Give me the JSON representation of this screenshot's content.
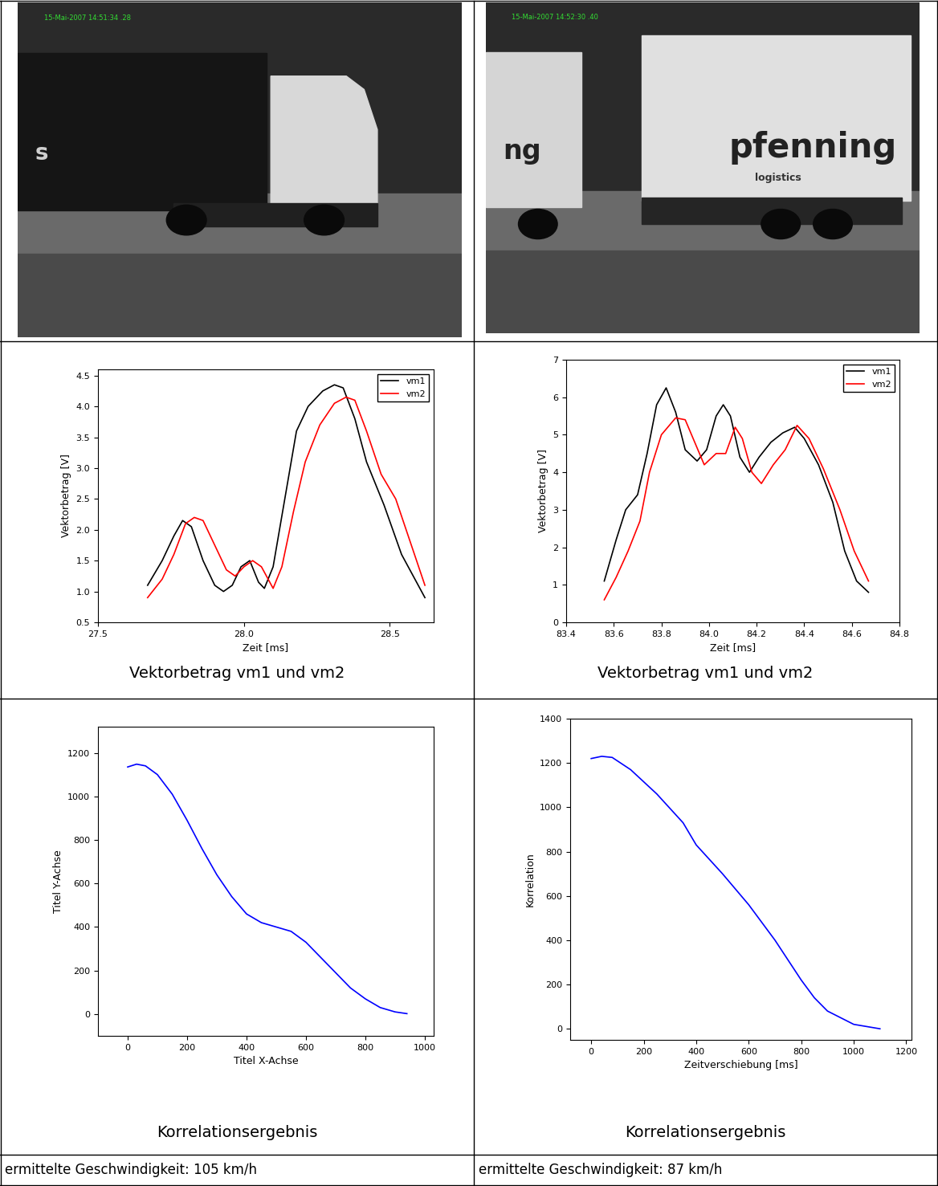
{
  "chart_data": [
    {
      "type": "line",
      "caption": "Vektorbetrag vm1 und vm2",
      "x_label": "Zeit [ms]",
      "y_label": "Vektorbetrag [V]",
      "xlim": [
        27.5,
        28.65
      ],
      "xticks": [
        27.5,
        {
          "value": 28,
          "label": "28.0"
        },
        28.5
      ],
      "ylim": [
        0.5,
        4.6
      ],
      "yticks": [
        0.5,
        {
          "value": 1,
          "label": "1.0"
        },
        1.5,
        {
          "value": 2,
          "label": "2.0"
        },
        2.5,
        {
          "value": 3,
          "label": "3.0"
        },
        3.5,
        {
          "value": 4,
          "label": "4.0"
        },
        4.5
      ],
      "legend": "upper right",
      "series": [
        {
          "name": "vm1",
          "color": "#000000",
          "x": [
            27.67,
            27.72,
            27.76,
            27.79,
            27.82,
            27.86,
            27.9,
            27.93,
            27.96,
            27.99,
            28.02,
            28.05,
            28.07,
            28.1,
            28.14,
            28.18,
            28.22,
            28.27,
            28.31,
            28.34,
            28.38,
            28.42,
            28.48,
            28.54,
            28.62
          ],
          "values": [
            1.1,
            1.5,
            1.9,
            2.15,
            2.05,
            1.5,
            1.1,
            1.0,
            1.1,
            1.4,
            1.5,
            1.15,
            1.05,
            1.4,
            2.5,
            3.6,
            4.0,
            4.25,
            4.35,
            4.3,
            3.8,
            3.1,
            2.4,
            1.6,
            0.9
          ]
        },
        {
          "name": "vm2",
          "color": "#ff0000",
          "x": [
            27.67,
            27.72,
            27.76,
            27.8,
            27.83,
            27.86,
            27.9,
            27.94,
            27.97,
            28.0,
            28.03,
            28.06,
            28.1,
            28.13,
            28.17,
            28.21,
            28.26,
            28.31,
            28.35,
            28.38,
            28.42,
            28.47,
            28.52,
            28.57,
            28.62
          ],
          "values": [
            0.9,
            1.2,
            1.6,
            2.1,
            2.2,
            2.15,
            1.75,
            1.35,
            1.25,
            1.4,
            1.5,
            1.4,
            1.05,
            1.4,
            2.3,
            3.1,
            3.7,
            4.05,
            4.15,
            4.1,
            3.6,
            2.9,
            2.5,
            1.8,
            1.1
          ]
        }
      ]
    },
    {
      "type": "line",
      "caption": "Vektorbetrag vm1 und vm2",
      "x_label": "Zeit [ms]",
      "y_label": "Vektorbetrag [V]",
      "xlim": [
        83.4,
        84.8
      ],
      "xticks": [
        83.4,
        83.6,
        83.8,
        {
          "value": 84,
          "label": "84.0"
        },
        84.2,
        84.4,
        84.6,
        84.8
      ],
      "ylim": [
        0,
        7
      ],
      "yticks": [
        0,
        1,
        2,
        3,
        4,
        5,
        6,
        7
      ],
      "legend": "upper right",
      "series": [
        {
          "name": "vm1",
          "color": "#000000",
          "x": [
            83.56,
            83.61,
            83.65,
            83.7,
            83.74,
            83.78,
            83.82,
            83.86,
            83.9,
            83.95,
            83.99,
            84.03,
            84.06,
            84.09,
            84.13,
            84.17,
            84.21,
            84.26,
            84.31,
            84.36,
            84.4,
            84.46,
            84.52,
            84.57,
            84.62,
            84.67
          ],
          "values": [
            1.1,
            2.2,
            3.0,
            3.4,
            4.5,
            5.8,
            6.25,
            5.6,
            4.6,
            4.3,
            4.6,
            5.5,
            5.8,
            5.5,
            4.4,
            4.0,
            4.4,
            4.8,
            5.05,
            5.2,
            4.9,
            4.2,
            3.2,
            1.9,
            1.1,
            0.8
          ]
        },
        {
          "name": "vm2",
          "color": "#ff0000",
          "x": [
            83.56,
            83.61,
            83.66,
            83.71,
            83.75,
            83.8,
            83.86,
            83.9,
            83.94,
            83.98,
            84.03,
            84.07,
            84.11,
            84.14,
            84.18,
            84.22,
            84.27,
            84.32,
            84.37,
            84.42,
            84.48,
            84.55,
            84.61,
            84.67
          ],
          "values": [
            0.6,
            1.2,
            1.9,
            2.7,
            4.0,
            5.0,
            5.45,
            5.4,
            4.8,
            4.2,
            4.5,
            4.5,
            5.2,
            4.9,
            4.0,
            3.7,
            4.2,
            4.6,
            5.25,
            4.9,
            4.1,
            3.0,
            1.9,
            1.1
          ]
        }
      ]
    },
    {
      "type": "line",
      "caption": "Korrelationsergebnis",
      "x_label": "Titel X-Achse",
      "y_label": "Titel Y-Achse",
      "xlim": [
        -100,
        1030
      ],
      "xticks": [
        0,
        200,
        400,
        600,
        800,
        1000
      ],
      "ylim": [
        -100,
        1320
      ],
      "yticks": [
        0,
        200,
        400,
        600,
        800,
        1000,
        1200
      ],
      "color": "#0000ff",
      "x": [
        0,
        30,
        60,
        100,
        150,
        200,
        250,
        300,
        350,
        400,
        450,
        500,
        550,
        600,
        650,
        700,
        750,
        800,
        850,
        900,
        940
      ],
      "values": [
        1135,
        1148,
        1140,
        1100,
        1010,
        890,
        760,
        640,
        540,
        460,
        420,
        400,
        380,
        330,
        260,
        190,
        120,
        70,
        30,
        10,
        2
      ]
    },
    {
      "type": "line",
      "caption": "Korrelationsergebnis",
      "x_label": "Zeitverschiebung [ms]",
      "y_label": "Korrelation",
      "xlim": [
        -80,
        1220
      ],
      "xticks": [
        0,
        200,
        400,
        600,
        800,
        1000,
        1200
      ],
      "ylim": [
        -50,
        1400
      ],
      "yticks": [
        0,
        200,
        400,
        600,
        800,
        1000,
        1200,
        1400
      ],
      "color": "#0000ff",
      "x": [
        0,
        40,
        80,
        150,
        250,
        350,
        400,
        500,
        600,
        700,
        800,
        850,
        900,
        1000,
        1100
      ],
      "values": [
        1220,
        1230,
        1225,
        1170,
        1060,
        930,
        830,
        700,
        560,
        400,
        220,
        140,
        80,
        20,
        0
      ]
    }
  ],
  "photos": [
    {
      "timestamp": "15-Mai-2007 14:51:34 .28",
      "texts": [
        "s"
      ]
    },
    {
      "timestamp": "15-Mai-2007 14:52:30 .40",
      "texts": [
        "ng",
        "pfenning",
        "logistics"
      ]
    }
  ],
  "results": [
    "ermittelte Geschwindigkeit: 105 km/h",
    "ermittelte Geschwindigkeit: 87 km/h"
  ]
}
